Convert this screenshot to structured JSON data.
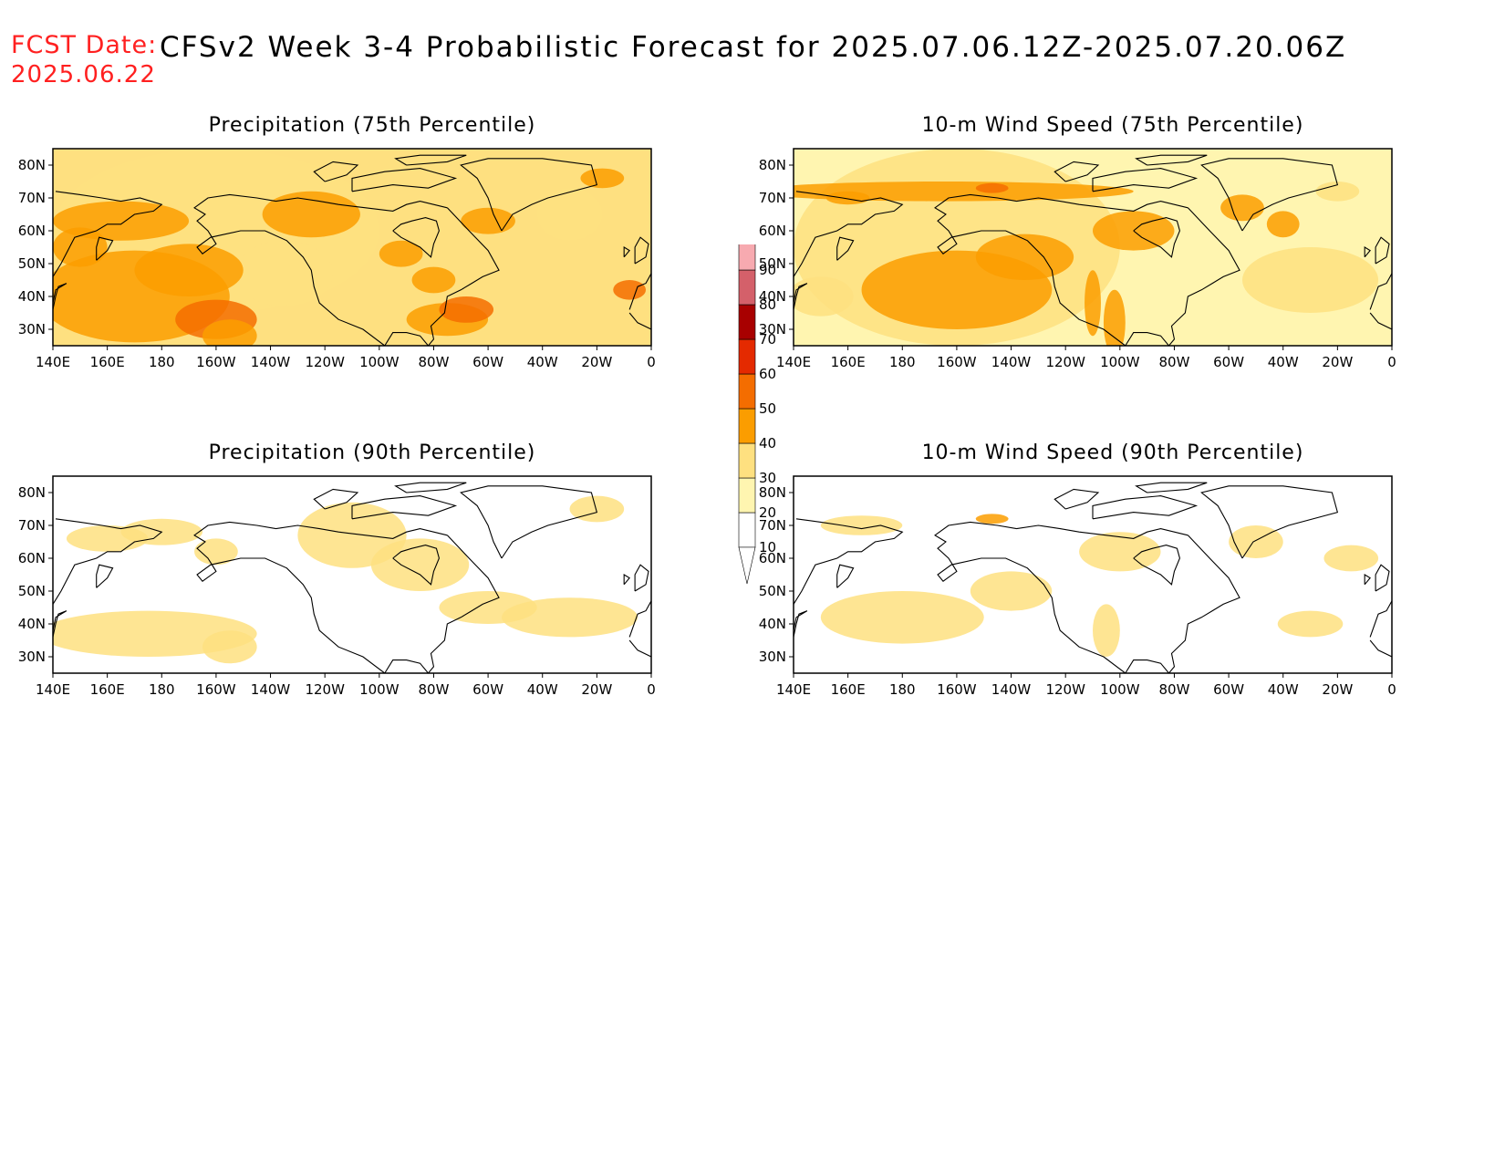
{
  "header": {
    "fcst_label": "FCST Date:",
    "fcst_date": "2025.06.22",
    "title": "CFSv2 Week 3-4 Probabilistic Forecast for 2025.07.06.12Z-2025.07.20.06Z"
  },
  "panels": [
    {
      "id": "p1",
      "title": "Precipitation (75th Percentile)",
      "variable": "precipitation",
      "percentile": 75,
      "level": "high"
    },
    {
      "id": "p2",
      "title": "10-m Wind Speed (75th Percentile)",
      "variable": "wind",
      "percentile": 75,
      "level": "high"
    },
    {
      "id": "p3",
      "title": "Precipitation (90th Percentile)",
      "variable": "precipitation",
      "percentile": 90,
      "level": "low"
    },
    {
      "id": "p4",
      "title": "10-m Wind Speed (90th Percentile)",
      "variable": "wind",
      "percentile": 90,
      "level": "low"
    }
  ],
  "axes": {
    "lon_labels": [
      "140E",
      "160E",
      "180",
      "160W",
      "140W",
      "120W",
      "100W",
      "80W",
      "60W",
      "40W",
      "20W",
      "0"
    ],
    "lat_labels": [
      "80N",
      "70N",
      "60N",
      "50N",
      "40N",
      "30N"
    ],
    "lon_range_deg_east": [
      140,
      360
    ],
    "lat_range": [
      25,
      85
    ]
  },
  "legend": {
    "levels": [
      "10",
      "20",
      "30",
      "40",
      "50",
      "60",
      "70",
      "80",
      "90"
    ],
    "colors": [
      "#ffffff",
      "#fff5b0",
      "#fee080",
      "#fb9d00",
      "#f46d00",
      "#e42a00",
      "#a80000",
      "#d4606a",
      "#f7aab0",
      "#fde0e2"
    ]
  }
}
